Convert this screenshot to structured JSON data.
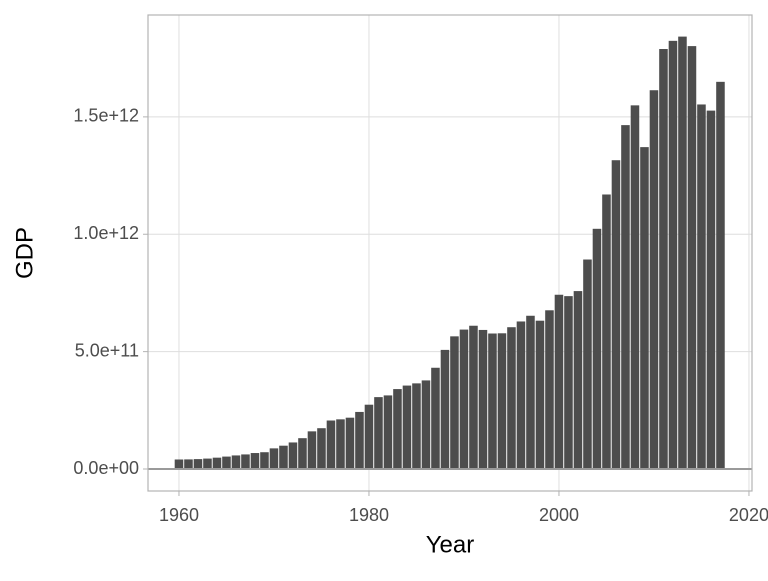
{
  "chart_data": {
    "type": "bar",
    "x_label": "Year",
    "y_label": "GDP",
    "x": [
      1960,
      1961,
      1962,
      1963,
      1964,
      1965,
      1966,
      1967,
      1968,
      1969,
      1970,
      1971,
      1972,
      1973,
      1974,
      1975,
      1976,
      1977,
      1978,
      1979,
      1980,
      1981,
      1982,
      1983,
      1984,
      1985,
      1986,
      1987,
      1988,
      1989,
      1990,
      1991,
      1992,
      1993,
      1994,
      1995,
      1996,
      1997,
      1998,
      1999,
      2000,
      2001,
      2002,
      2003,
      2004,
      2005,
      2006,
      2007,
      2008,
      2009,
      2010,
      2011,
      2012,
      2013,
      2014,
      2015,
      2016,
      2017
    ],
    "values": [
      40500000000.0,
      40900000000.0,
      42200000000.0,
      44400000000.0,
      48300000000.0,
      52900000000.0,
      57800000000.0,
      62100000000.0,
      68000000000.0,
      71500000000.0,
      87900000000.0,
      99300000000.0,
      113100000000.0,
      131300000000.0,
      160400000000.0,
      173800000000.0,
      206600000000.0,
      211600000000.0,
      218600000000.0,
      243100000000.0,
      273900000000.0,
      306200000000.0,
      313500000000.0,
      340500000000.0,
      355400000000.0,
      364800000000.0,
      377400000000.0,
      431300000000.0,
      507400000000.0,
      565100000000.0,
      593900000000.0,
      610300000000.0,
      592400000000.0,
      577200000000.0,
      578100000000.0,
      604000000000.0,
      628500000000.0,
      652800000000.0,
      631800000000.0,
      676100000000.0,
      742300000000.0,
      736400000000.0,
      757900000000.0,
      892400000000.0,
      1023200000000.0,
      1169400000000.0,
      1315400000000.0,
      1464900000000.0,
      1549100000000.0,
      1371200000000.0,
      1613500000000.0,
      1789100000000.0,
      1823900000000.0,
      1842000000000.0,
      1801500000000.0,
      1552900000000.0,
      1526700000000.0,
      1649300000000.0
    ],
    "color": "#4d4d4d",
    "xlim": [
      1956.74,
      2020.32
    ],
    "xticks": [
      1960,
      1980,
      2000,
      2020
    ],
    "ylim": [
      -93700000000.0,
      1934000000000.0
    ],
    "yticks": [
      {
        "value": 0,
        "label": "0.0e+00"
      },
      {
        "value": 500000000000.0,
        "label": "5.0e+11"
      },
      {
        "value": 1000000000000.0,
        "label": "1.0e+12"
      },
      {
        "value": 1500000000000.0,
        "label": "1.5e+12"
      }
    ],
    "grid": true
  }
}
